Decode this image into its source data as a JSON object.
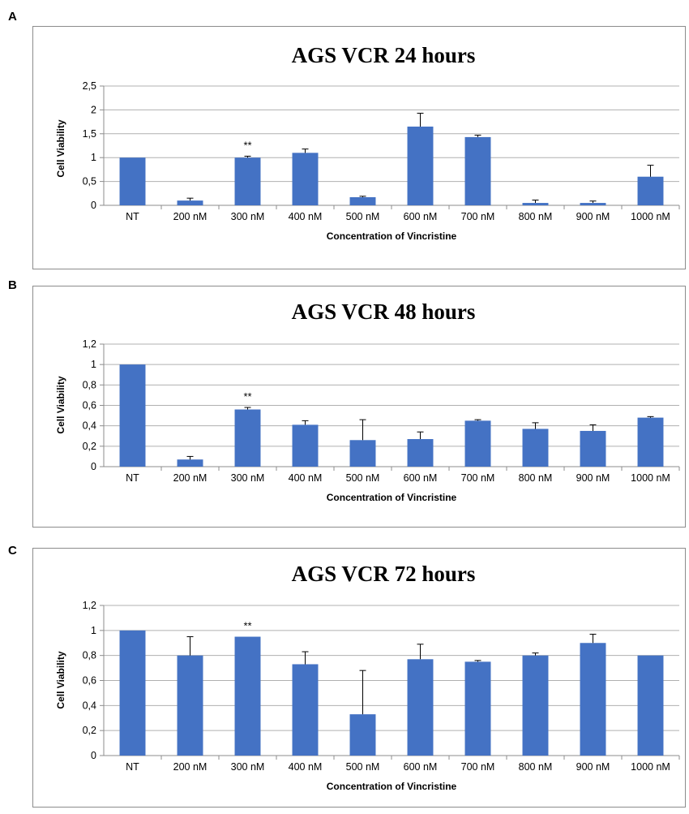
{
  "chart_data": [
    {
      "panel_label": "A",
      "type": "bar",
      "title": "AGS VCR 24 hours",
      "xlabel": "Concentration of Vincristine",
      "ylabel": "Cell Viability",
      "categories": [
        "NT",
        "200 nM",
        "300 nM",
        "400 nM",
        "500 nM",
        "600 nM",
        "700 nM",
        "800 nM",
        "900 nM",
        "1000 nM"
      ],
      "values": [
        1.0,
        0.1,
        1.0,
        1.1,
        0.17,
        1.65,
        1.43,
        0.05,
        0.05,
        0.6
      ],
      "errors": [
        0.0,
        0.05,
        0.03,
        0.08,
        0.02,
        0.28,
        0.04,
        0.06,
        0.04,
        0.24
      ],
      "ylim": [
        0,
        2.5
      ],
      "yticks": [
        0,
        0.5,
        1,
        1.5,
        2,
        2.5
      ],
      "ytick_labels": [
        "0",
        "0,5",
        "1",
        "1,5",
        "2",
        "2,5"
      ],
      "annotations": [
        {
          "category": "300 nM",
          "text": "**"
        }
      ],
      "grid": true,
      "legend": false,
      "bar_color": "#4472c4"
    },
    {
      "panel_label": "B",
      "type": "bar",
      "title": "AGS VCR 48 hours",
      "xlabel": "Concentration of Vincristine",
      "ylabel": "Cell Viability",
      "categories": [
        "NT",
        "200 nM",
        "300 nM",
        "400 nM",
        "500 nM",
        "600 nM",
        "700 nM",
        "800 nM",
        "900 nM",
        "1000 nM"
      ],
      "values": [
        1.0,
        0.07,
        0.56,
        0.41,
        0.26,
        0.27,
        0.45,
        0.37,
        0.35,
        0.48
      ],
      "errors": [
        0.0,
        0.03,
        0.02,
        0.04,
        0.2,
        0.07,
        0.01,
        0.06,
        0.06,
        0.01
      ],
      "ylim": [
        0,
        1.2
      ],
      "yticks": [
        0,
        0.2,
        0.4,
        0.6,
        0.8,
        1,
        1.2
      ],
      "ytick_labels": [
        "0",
        "0,2",
        "0,4",
        "0,6",
        "0,8",
        "1",
        "1,2"
      ],
      "annotations": [
        {
          "category": "300 nM",
          "text": "**"
        }
      ],
      "grid": true,
      "legend": false,
      "bar_color": "#4472c4"
    },
    {
      "panel_label": "C",
      "type": "bar",
      "title": "AGS VCR 72 hours",
      "xlabel": "Concentration of Vincristine",
      "ylabel": "Cell Viability",
      "categories": [
        "NT",
        "200 nM",
        "300 nM",
        "400 nM",
        "500 nM",
        "600 nM",
        "700 nM",
        "800 nM",
        "900 nM",
        "1000 nM"
      ],
      "values": [
        1.0,
        0.8,
        0.95,
        0.73,
        0.33,
        0.77,
        0.75,
        0.8,
        0.9,
        0.8
      ],
      "errors": [
        0.0,
        0.15,
        0.0,
        0.1,
        0.35,
        0.12,
        0.01,
        0.02,
        0.07,
        0.0
      ],
      "ylim": [
        0,
        1.2
      ],
      "yticks": [
        0,
        0.2,
        0.4,
        0.6,
        0.8,
        1,
        1.2
      ],
      "ytick_labels": [
        "0",
        "0,2",
        "0,4",
        "0,6",
        "0,8",
        "1",
        "1,2"
      ],
      "annotations": [
        {
          "category": "300 nM",
          "text": "**"
        }
      ],
      "grid": true,
      "legend": false,
      "bar_color": "#4472c4"
    }
  ]
}
